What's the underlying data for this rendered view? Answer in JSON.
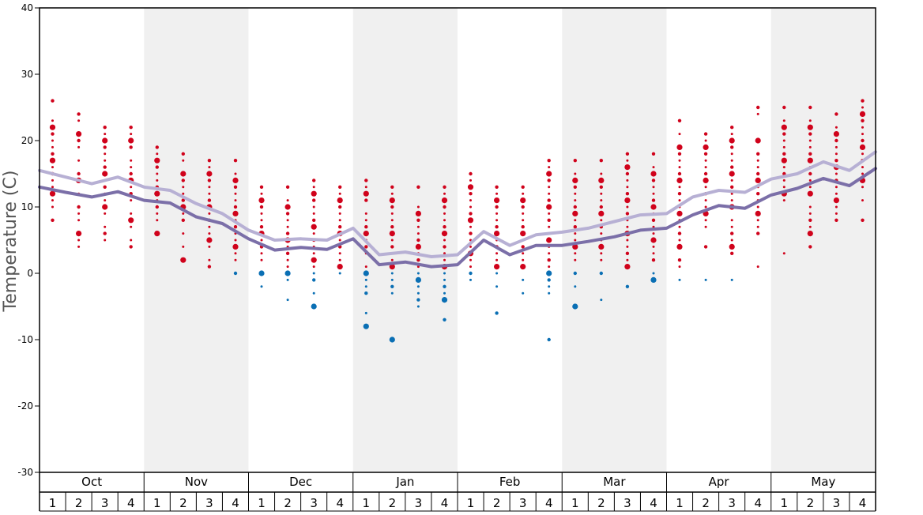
{
  "chart_data": {
    "type": "line",
    "title": "",
    "xlabel": "",
    "ylabel": "Temperature (C)",
    "ylim": [
      -30,
      40
    ],
    "yticks": [
      40,
      30,
      20,
      10,
      0,
      -10,
      -20,
      -30
    ],
    "grid": false,
    "months": [
      "Oct",
      "Nov",
      "Dec",
      "Jan",
      "Feb",
      "Mar",
      "Apr",
      "May"
    ],
    "weeks": [
      "1",
      "2",
      "3",
      "4"
    ],
    "colors": {
      "warm_dots": "#d0021b",
      "cold_dots": "#0a6fb4",
      "upper_line": "#b7b0d4",
      "lower_line": "#7b6fa8",
      "alt_band": "#f0f0f0"
    },
    "series": [
      {
        "values": [
          15.5,
          14.5,
          13.5,
          14.5,
          13,
          12.5,
          10.5,
          9,
          6.5,
          5,
          5.2,
          5,
          6.8,
          2.8,
          3.2,
          2.5,
          2.8,
          6.3,
          4.2,
          5.8,
          6.2,
          6.8,
          7.8,
          8.8,
          9,
          11.5,
          12.5,
          12.2,
          14.2,
          15,
          16.8,
          15.5,
          18.3
        ]
      },
      {
        "values": [
          13,
          12.2,
          11.5,
          12.3,
          11,
          10.6,
          8.5,
          7.5,
          5.2,
          3.5,
          3.9,
          3.6,
          5.2,
          1.3,
          1.7,
          1,
          1.3,
          5,
          2.8,
          4.2,
          4.2,
          4.8,
          5.5,
          6.5,
          6.8,
          8.8,
          10.2,
          9.8,
          11.8,
          12.8,
          14.3,
          13.2,
          15.8
        ]
      }
    ],
    "snowfall_points": [
      {
        "x": 0.5,
        "ys": [
          26,
          23,
          22,
          21,
          20,
          19,
          18,
          17,
          16,
          15,
          14,
          13,
          12,
          11,
          10,
          8
        ]
      },
      {
        "x": 1.5,
        "ys": [
          24,
          23,
          21,
          20,
          19,
          17,
          15,
          14,
          12,
          10,
          9,
          8,
          6,
          5,
          4
        ]
      },
      {
        "x": 2.5,
        "ys": [
          22,
          21,
          20,
          19,
          18,
          17,
          16,
          15,
          14,
          13,
          12,
          11,
          10,
          9,
          7,
          6,
          5
        ]
      },
      {
        "x": 3.5,
        "ys": [
          22,
          21,
          20,
          19,
          17,
          16,
          15,
          14,
          13,
          12,
          11,
          9,
          8,
          7,
          5,
          4
        ]
      },
      {
        "x": 4.5,
        "ys": [
          19,
          18,
          17,
          16,
          15,
          14,
          13,
          12,
          11,
          10,
          9,
          8,
          6
        ]
      },
      {
        "x": 5.5,
        "ys": [
          18,
          17,
          15,
          14,
          13,
          12,
          11,
          10,
          9,
          8,
          6,
          4,
          2
        ]
      },
      {
        "x": 6.5,
        "ys": [
          17,
          16,
          15,
          14,
          13,
          12,
          11,
          10,
          9,
          8,
          7,
          6,
          5,
          4,
          2,
          1
        ]
      },
      {
        "x": 7.5,
        "ys": [
          17,
          15,
          14,
          13,
          12,
          11,
          10,
          9,
          8,
          7,
          6,
          5,
          4,
          3,
          2,
          0
        ]
      },
      {
        "x": 8.5,
        "ys": [
          13,
          12,
          11,
          10,
          9,
          8,
          7,
          6,
          5,
          4,
          3,
          2,
          0,
          -2
        ]
      },
      {
        "x": 9.5,
        "ys": [
          13,
          11,
          10,
          9,
          8,
          7,
          6,
          5,
          4,
          3,
          2,
          1,
          0,
          -1,
          -4
        ]
      },
      {
        "x": 10.5,
        "ys": [
          14,
          13,
          12,
          11,
          10,
          9,
          8,
          7,
          6,
          5,
          4,
          3,
          2,
          1,
          0,
          -1,
          -3,
          -5
        ]
      },
      {
        "x": 11.5,
        "ys": [
          13,
          12,
          11,
          10,
          9,
          8,
          7,
          6,
          5,
          4,
          3,
          2,
          1,
          0
        ]
      },
      {
        "x": 12.5,
        "ys": [
          14,
          13,
          12,
          11,
          9,
          8,
          7,
          6,
          5,
          4,
          3,
          1,
          0,
          -1,
          -2,
          -3,
          -6,
          -8
        ]
      },
      {
        "x": 13.5,
        "ys": [
          13,
          12,
          11,
          10,
          9,
          8,
          7,
          6,
          5,
          4,
          3,
          2,
          1,
          0,
          -1,
          -2,
          -3,
          -10
        ]
      },
      {
        "x": 14.5,
        "ys": [
          13,
          10,
          9,
          8,
          7,
          6,
          5,
          4,
          3,
          2,
          1,
          0,
          -1,
          -2,
          -3,
          -4,
          -5
        ]
      },
      {
        "x": 15.5,
        "ys": [
          13,
          12,
          11,
          10,
          9,
          8,
          7,
          6,
          5,
          4,
          3,
          2,
          1,
          0,
          -1,
          -2,
          -3,
          -4,
          -7
        ]
      },
      {
        "x": 16.5,
        "ys": [
          15,
          14,
          13,
          12,
          11,
          10,
          9,
          8,
          7,
          6,
          5,
          4,
          3,
          2,
          1,
          0,
          -1
        ]
      },
      {
        "x": 17.5,
        "ys": [
          13,
          12,
          11,
          10,
          9,
          8,
          7,
          6,
          5,
          4,
          3,
          2,
          1,
          0,
          -2,
          -6
        ]
      },
      {
        "x": 18.5,
        "ys": [
          13,
          12,
          11,
          10,
          9,
          8,
          7,
          6,
          5,
          4,
          3,
          2,
          1,
          -1,
          -3
        ]
      },
      {
        "x": 19.5,
        "ys": [
          17,
          16,
          15,
          14,
          13,
          12,
          11,
          10,
          9,
          8,
          7,
          6,
          5,
          4,
          3,
          2,
          1,
          0,
          -1,
          -2,
          -3,
          -10
        ]
      },
      {
        "x": 20.5,
        "ys": [
          17,
          15,
          14,
          13,
          12,
          11,
          10,
          9,
          8,
          7,
          6,
          5,
          4,
          3,
          2,
          0,
          -2,
          -5
        ]
      },
      {
        "x": 21.5,
        "ys": [
          17,
          15,
          14,
          13,
          12,
          11,
          10,
          9,
          8,
          7,
          6,
          5,
          4,
          3,
          2,
          0,
          -4
        ]
      },
      {
        "x": 22.5,
        "ys": [
          18,
          17,
          16,
          15,
          14,
          13,
          12,
          11,
          10,
          9,
          8,
          7,
          6,
          5,
          4,
          3,
          2,
          1,
          -2
        ]
      },
      {
        "x": 23.5,
        "ys": [
          18,
          16,
          15,
          14,
          13,
          12,
          11,
          10,
          9,
          8,
          7,
          6,
          5,
          4,
          3,
          2,
          0,
          -1
        ]
      },
      {
        "x": 24.5,
        "ys": [
          23,
          21,
          19,
          18,
          17,
          16,
          15,
          14,
          13,
          12,
          11,
          10,
          9,
          8,
          7,
          6,
          5,
          4,
          2,
          1,
          -1
        ]
      },
      {
        "x": 25.5,
        "ys": [
          21,
          20,
          19,
          18,
          17,
          16,
          15,
          14,
          13,
          12,
          11,
          10,
          9,
          8,
          7,
          4,
          -1
        ]
      },
      {
        "x": 26.5,
        "ys": [
          22,
          21,
          20,
          19,
          18,
          17,
          16,
          15,
          14,
          13,
          12,
          11,
          10,
          8,
          7,
          6,
          5,
          4,
          3,
          -1
        ]
      },
      {
        "x": 27.5,
        "ys": [
          25,
          24,
          20,
          18,
          17,
          16,
          15,
          14,
          13,
          12,
          11,
          10,
          9,
          8,
          7,
          6,
          1
        ]
      },
      {
        "x": 28.5,
        "ys": [
          25,
          23,
          22,
          21,
          20,
          19,
          18,
          17,
          16,
          15,
          14,
          13,
          12,
          11,
          3
        ]
      },
      {
        "x": 29.5,
        "ys": [
          25,
          23,
          22,
          21,
          20,
          19,
          18,
          17,
          16,
          15,
          14,
          13,
          12,
          10,
          9,
          8,
          7,
          6,
          4
        ]
      },
      {
        "x": 30.5,
        "ys": [
          24,
          22,
          21,
          20,
          19,
          18,
          17,
          16,
          15,
          14,
          13,
          12,
          11,
          10,
          9,
          8
        ]
      },
      {
        "x": 31.5,
        "ys": [
          26,
          25,
          24,
          23,
          22,
          21,
          20,
          19,
          18,
          17,
          16,
          15,
          14,
          13,
          11,
          8
        ]
      }
    ]
  }
}
